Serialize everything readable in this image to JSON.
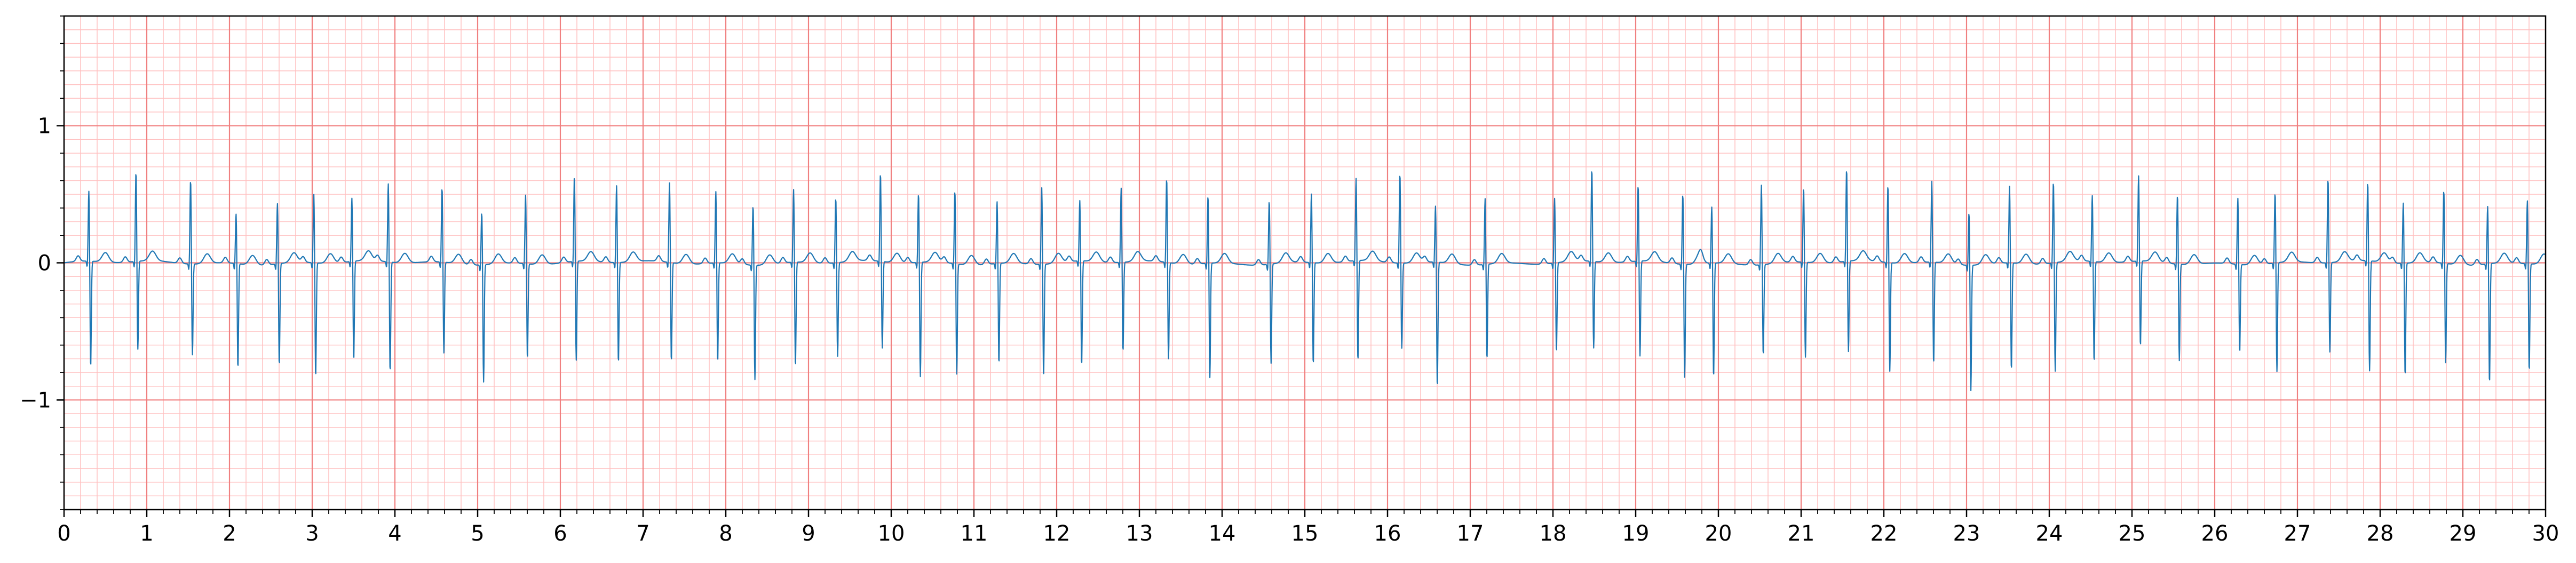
{
  "chart_data": {
    "type": "line",
    "title": "",
    "xlabel": "",
    "ylabel": "",
    "xlim": [
      0,
      30
    ],
    "ylim": [
      -1.8,
      1.8
    ],
    "grid": true,
    "grid_major_x": 1,
    "grid_minor_x": 0.2,
    "grid_major_y": 1,
    "grid_minor_y": 0.1,
    "x_ticks": [
      0,
      1,
      2,
      3,
      4,
      5,
      6,
      7,
      8,
      9,
      10,
      11,
      12,
      13,
      14,
      15,
      16,
      17,
      18,
      19,
      20,
      21,
      22,
      23,
      24,
      25,
      26,
      27,
      28,
      29,
      30
    ],
    "x_tick_labels": [
      "0",
      "1",
      "2",
      "3",
      "4",
      "5",
      "6",
      "7",
      "8",
      "9",
      "10",
      "11",
      "12",
      "13",
      "14",
      "15",
      "16",
      "17",
      "18",
      "19",
      "20",
      "21",
      "22",
      "23",
      "24",
      "25",
      "26",
      "27",
      "28",
      "29",
      "30"
    ],
    "y_ticks": [
      -1,
      0,
      1
    ],
    "y_tick_labels": [
      "−1",
      "0",
      "1"
    ],
    "colors": {
      "signal": "#1f77b4",
      "grid_major": "#f08080",
      "grid_minor": "#ffc0c0",
      "axes": "#000000"
    },
    "series": [
      {
        "beats": [
          {
            "t": 0.3,
            "r": 0.52,
            "s": -0.78
          },
          {
            "t": 0.87,
            "r": 0.66,
            "s": -0.65
          },
          {
            "t": 1.53,
            "r": 0.62,
            "s": -0.67
          },
          {
            "t": 2.08,
            "r": 0.37,
            "s": -0.77
          },
          {
            "t": 2.58,
            "r": 0.45,
            "s": -0.75
          },
          {
            "t": 3.02,
            "r": 0.51,
            "s": -0.84
          },
          {
            "t": 3.48,
            "r": 0.47,
            "s": -0.73
          },
          {
            "t": 3.92,
            "r": 0.58,
            "s": -0.81
          },
          {
            "t": 4.57,
            "r": 0.55,
            "s": -0.67
          },
          {
            "t": 5.05,
            "r": 0.39,
            "s": -0.86
          },
          {
            "t": 5.58,
            "r": 0.51,
            "s": -0.7
          },
          {
            "t": 6.17,
            "r": 0.63,
            "s": -0.73
          },
          {
            "t": 6.68,
            "r": 0.57,
            "s": -0.74
          },
          {
            "t": 7.32,
            "r": 0.59,
            "s": -0.73
          },
          {
            "t": 7.88,
            "r": 0.53,
            "s": -0.73
          },
          {
            "t": 8.33,
            "r": 0.44,
            "s": -0.84
          },
          {
            "t": 8.82,
            "r": 0.54,
            "s": -0.77
          },
          {
            "t": 9.33,
            "r": 0.48,
            "s": -0.69
          },
          {
            "t": 9.87,
            "r": 0.65,
            "s": -0.64
          },
          {
            "t": 10.33,
            "r": 0.51,
            "s": -0.84
          },
          {
            "t": 10.77,
            "r": 0.54,
            "s": -0.81
          },
          {
            "t": 11.28,
            "r": 0.46,
            "s": -0.74
          },
          {
            "t": 11.82,
            "r": 0.57,
            "s": -0.83
          },
          {
            "t": 12.28,
            "r": 0.45,
            "s": -0.77
          },
          {
            "t": 12.78,
            "r": 0.55,
            "s": -0.66
          },
          {
            "t": 13.33,
            "r": 0.62,
            "s": -0.71
          },
          {
            "t": 13.83,
            "r": 0.5,
            "s": -0.84
          },
          {
            "t": 14.57,
            "r": 0.47,
            "s": -0.73
          },
          {
            "t": 15.08,
            "r": 0.51,
            "s": -0.75
          },
          {
            "t": 15.62,
            "r": 0.61,
            "s": -0.74
          },
          {
            "t": 16.15,
            "r": 0.66,
            "s": -0.63
          },
          {
            "t": 16.58,
            "r": 0.42,
            "s": -0.92
          },
          {
            "t": 17.18,
            "r": 0.49,
            "s": -0.7
          },
          {
            "t": 18.02,
            "r": 0.48,
            "s": -0.66
          },
          {
            "t": 18.47,
            "r": 0.68,
            "s": -0.64
          },
          {
            "t": 19.03,
            "r": 0.56,
            "s": -0.7
          },
          {
            "t": 19.57,
            "r": 0.52,
            "s": -0.83
          },
          {
            "t": 19.92,
            "r": 0.42,
            "s": -0.84
          },
          {
            "t": 20.52,
            "r": 0.59,
            "s": -0.67
          },
          {
            "t": 21.03,
            "r": 0.55,
            "s": -0.7
          },
          {
            "t": 21.55,
            "r": 0.68,
            "s": -0.67
          },
          {
            "t": 22.05,
            "r": 0.57,
            "s": -0.8
          },
          {
            "t": 22.58,
            "r": 0.6,
            "s": -0.75
          },
          {
            "t": 23.03,
            "r": 0.39,
            "s": -0.92
          },
          {
            "t": 23.52,
            "r": 0.57,
            "s": -0.79
          },
          {
            "t": 24.05,
            "r": 0.6,
            "s": -0.8
          },
          {
            "t": 24.52,
            "r": 0.49,
            "s": -0.74
          },
          {
            "t": 25.08,
            "r": 0.63,
            "s": -0.63
          },
          {
            "t": 25.55,
            "r": 0.51,
            "s": -0.71
          },
          {
            "t": 26.28,
            "r": 0.49,
            "s": -0.65
          },
          {
            "t": 26.73,
            "r": 0.52,
            "s": -0.8
          },
          {
            "t": 27.37,
            "r": 0.62,
            "s": -0.66
          },
          {
            "t": 27.85,
            "r": 0.58,
            "s": -0.81
          },
          {
            "t": 28.28,
            "r": 0.45,
            "s": -0.83
          },
          {
            "t": 28.77,
            "r": 0.54,
            "s": -0.73
          },
          {
            "t": 29.3,
            "r": 0.43,
            "s": -0.88
          },
          {
            "t": 29.78,
            "r": 0.47,
            "s": -0.79
          }
        ]
      }
    ]
  }
}
